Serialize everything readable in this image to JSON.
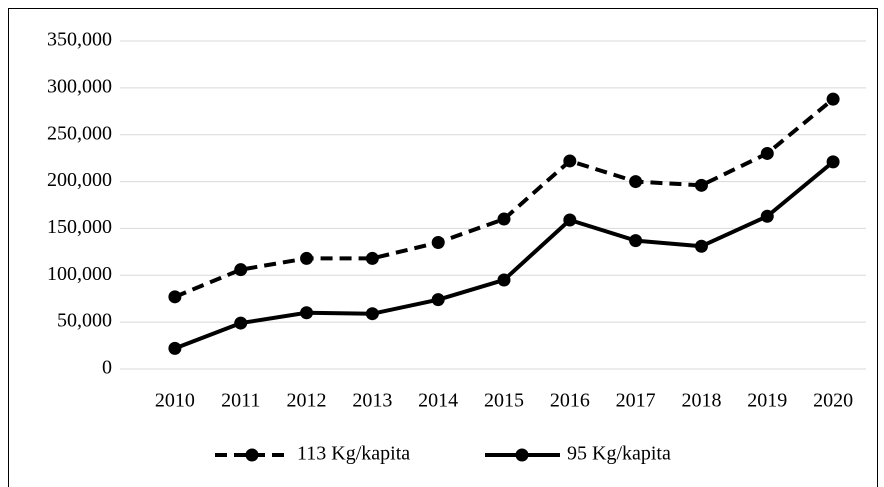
{
  "chart_data": {
    "type": "line",
    "categories": [
      "2010",
      "2011",
      "2012",
      "2013",
      "2014",
      "2015",
      "2016",
      "2017",
      "2018",
      "2019",
      "2020"
    ],
    "series": [
      {
        "name": "113 Kg/kapita",
        "color": "#000000",
        "dash": true,
        "values": [
          77000,
          106000,
          118000,
          118000,
          135000,
          160000,
          222000,
          200000,
          196000,
          230000,
          288000
        ]
      },
      {
        "name": "95 Kg/kapita",
        "color": "#000000",
        "dash": false,
        "values": [
          22000,
          49000,
          60000,
          59000,
          74000,
          95000,
          159000,
          137000,
          131000,
          163000,
          221000
        ]
      }
    ],
    "ylim": [
      0,
      350000
    ],
    "yticks": [
      0,
      {
        "value": 50000,
        "label": "50,000"
      },
      {
        "value": 100000,
        "label": "100,000"
      },
      {
        "value": 150000,
        "label": "150,000"
      },
      {
        "value": 200000,
        "label": "200,000"
      },
      {
        "value": 250000,
        "label": "250,000"
      },
      {
        "value": 300000,
        "label": "300,000"
      },
      {
        "value": 350000,
        "label": "350,000"
      }
    ],
    "grid": true,
    "legend": "bottom"
  }
}
